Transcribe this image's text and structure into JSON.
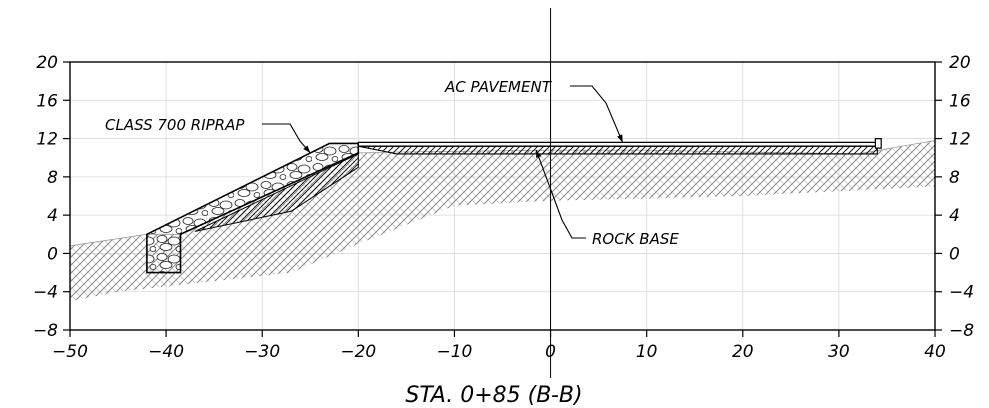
{
  "chart_data": {
    "type": "cross-section",
    "title": "STA. 0+85 (B-B)",
    "xlim": [
      -50,
      40
    ],
    "ylim": [
      -8,
      20
    ],
    "x_ticks": [
      -50,
      -40,
      -30,
      -20,
      -10,
      0,
      10,
      20,
      30,
      40
    ],
    "y_ticks": [
      20,
      16,
      12,
      8,
      4,
      0,
      -4,
      -8
    ],
    "grid": true,
    "x_tick_labels": [
      "−50",
      "−40",
      "−30",
      "−20",
      "−10",
      "0",
      "10",
      "20",
      "30",
      "40"
    ],
    "y_tick_labels": [
      "20",
      "16",
      "12",
      "8",
      "4",
      "0",
      "−4",
      "−8"
    ],
    "centerline_x": 0,
    "ground_surface": [
      [
        -50,
        0.8
      ],
      [
        -42,
        2
      ],
      [
        -38.5,
        2
      ],
      [
        -20,
        10.5
      ],
      [
        -16,
        10.6
      ],
      [
        0,
        10.8
      ],
      [
        10,
        10.8
      ],
      [
        20,
        10.6
      ],
      [
        32,
        10.4
      ],
      [
        40,
        11.8
      ]
    ],
    "ground_bottom": [
      [
        -50,
        -5
      ],
      [
        -45,
        -4
      ],
      [
        -27,
        -2
      ],
      [
        -20,
        1
      ],
      [
        -10,
        5
      ],
      [
        0,
        5.5
      ],
      [
        20,
        6
      ],
      [
        40,
        7
      ]
    ],
    "riprap": [
      [
        -42,
        2
      ],
      [
        -23,
        11.5
      ],
      [
        -20,
        11.5
      ],
      [
        -20,
        10.5
      ],
      [
        -38.5,
        2
      ],
      [
        -38.5,
        -2
      ],
      [
        -42,
        -2
      ]
    ],
    "rock_base": [
      [
        -20,
        11.2
      ],
      [
        34,
        11.2
      ],
      [
        34,
        10.4
      ],
      [
        -16,
        10.4
      ]
    ],
    "ac_pavement": [
      [
        -20,
        11.6
      ],
      [
        34,
        11.6
      ],
      [
        34,
        11.2
      ],
      [
        -20,
        11.2
      ]
    ],
    "curb": [
      [
        33.8,
        11
      ],
      [
        34.4,
        11
      ],
      [
        34.4,
        12
      ],
      [
        33.8,
        12
      ]
    ],
    "annotations": [
      {
        "text": "AC PAVEMENT",
        "target": [
          7.5,
          11.6
        ]
      },
      {
        "text": "CLASS 700 RIPRAP",
        "target": [
          -25,
          10.5
        ]
      },
      {
        "text": "ROCK BASE",
        "target": [
          -1.5,
          10.8
        ]
      }
    ]
  }
}
